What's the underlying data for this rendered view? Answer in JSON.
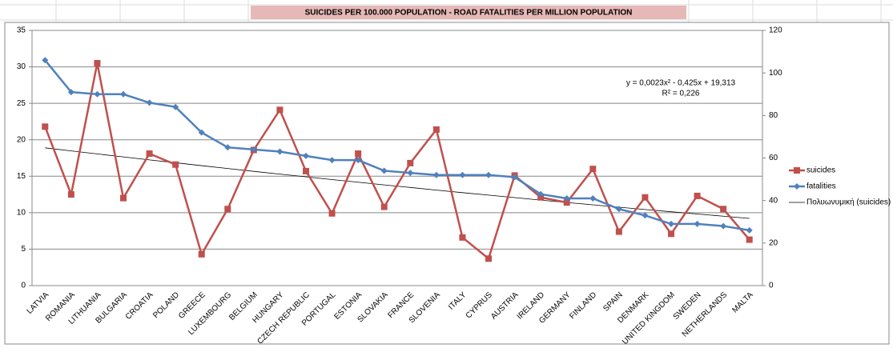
{
  "chart_data": {
    "type": "line",
    "title": "SUICIDES PER 100.000 POPULATION - ROAD FATALITIES PER MILLION POPULATION",
    "categories": [
      "LATVIA",
      "ROMANIA",
      "LITHUANIA",
      "BULGARIA",
      "CROATIA",
      "POLAND",
      "GREECE",
      "LUXEMBOURG",
      "BELGIUM",
      "HUNGARY",
      "CZECH REPUBLIC",
      "PORTUGAL",
      "ESTONIA",
      "SLOVAKIA",
      "FRANCE",
      "SLOVENIA",
      "ITALY",
      "CYPRUS",
      "AUSTRIA",
      "IRELAND",
      "GERMANY",
      "FINLAND",
      "SPAIN",
      "DENMARK",
      "UNITED KINGDOM",
      "SWEDEN",
      "NETHERLANDS",
      "MALTA"
    ],
    "series": [
      {
        "name": "suicides",
        "color": "#c0504d",
        "marker": "square",
        "values": [
          21.8,
          12.5,
          30.5,
          12,
          18.1,
          16.6,
          4.3,
          10.5,
          18.6,
          24.1,
          15.7,
          9.9,
          18.1,
          10.8,
          16.8,
          21.4,
          6.6,
          3.7,
          15.1,
          12.1,
          11.4,
          16,
          7.4,
          12.1,
          7.1,
          12.3,
          10.5,
          6.3
        ]
      },
      {
        "name": "fatalities",
        "color": "#4f81bd",
        "marker": "diamond",
        "axis": "y2",
        "values": [
          106,
          91,
          90,
          90,
          86,
          84,
          72,
          65,
          64,
          63,
          61,
          59,
          59,
          54,
          53,
          52,
          52,
          52,
          51,
          43,
          41,
          41,
          36,
          33,
          29,
          29,
          28,
          26
        ]
      },
      {
        "name": "Πολυωνυμική (suicides)",
        "color": "#000000",
        "marker": "none",
        "values": [
          18.89,
          18.47,
          18.06,
          17.65,
          17.24,
          16.85,
          16.45,
          16.06,
          15.67,
          15.29,
          14.92,
          14.54,
          14.18,
          13.81,
          13.46,
          13.1,
          12.75,
          12.41,
          12.07,
          11.73,
          11.4,
          11.08,
          10.75,
          10.44,
          10.13,
          9.82,
          9.52,
          9.22
        ]
      }
    ],
    "annotations": [
      "y = 0,0023x² - 0,425x + 19,313",
      "R² = 0,226"
    ],
    "ylim": [
      0,
      35
    ],
    "yticks": [
      0,
      5,
      10,
      15,
      20,
      25,
      30,
      35
    ],
    "y2lim": [
      0,
      120
    ],
    "y2ticks": [
      0,
      20,
      40,
      60,
      80,
      100,
      120
    ],
    "grid": true,
    "legend": "right"
  }
}
